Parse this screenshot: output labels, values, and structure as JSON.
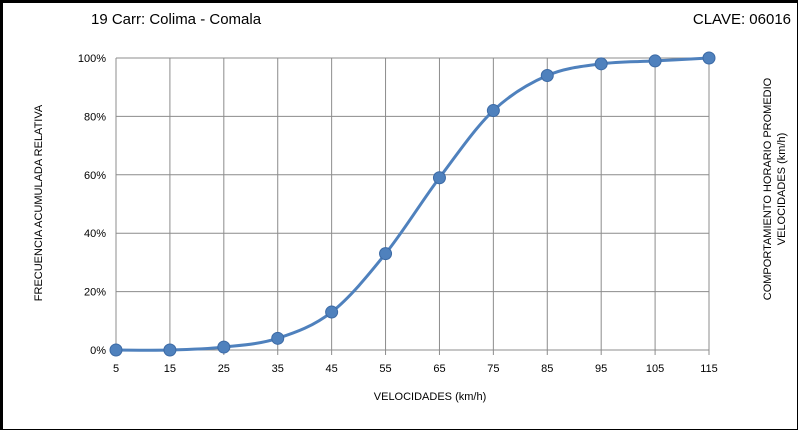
{
  "header": {
    "title": "19 Carr: Colima - Comala",
    "code": "CLAVE: 06016"
  },
  "chart_data": {
    "type": "line",
    "xlabel": "VELOCIDADES  (km/h)",
    "ylabel": "FRECUENCIA ACUMULADA RELATIVA",
    "right_label_lines": [
      "COMPORTAMIENTO  HORARIO PROMEDIO",
      "VELOCIDADES  (km/h)"
    ],
    "categories": [
      "5",
      "15",
      "25",
      "35",
      "45",
      "55",
      "65",
      "75",
      "85",
      "95",
      "105",
      "115"
    ],
    "y_tick_labels": [
      "0%",
      "20%",
      "40%",
      "60%",
      "80%",
      "100%"
    ],
    "ylim": [
      0,
      100
    ],
    "grid": true,
    "legend": "none",
    "series": [
      {
        "values": [
          0,
          0,
          1,
          4,
          13,
          33,
          59,
          82,
          94,
          98,
          99,
          100
        ],
        "color": "#4f81bd"
      }
    ]
  }
}
